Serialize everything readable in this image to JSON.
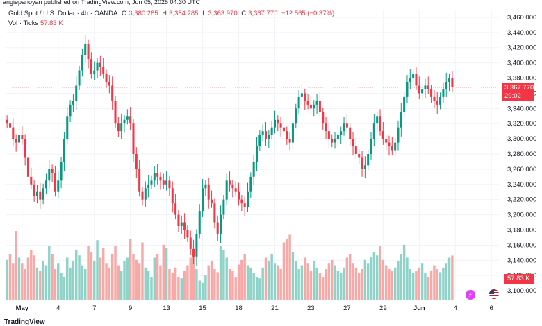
{
  "caption": "angiepanoyan published on TradingView.com, Jun 05, 2025 04:30 UTC",
  "legend": {
    "symbol": "Gold Spot / U.S. Dollar · 4h · OANDA",
    "open_label": "O",
    "open": "3,380.285",
    "high_label": "H",
    "high": "3,384.285",
    "low_label": "L",
    "low": "3,363.970",
    "close_label": "C",
    "close": "3,367.770",
    "change": "−12.565 (−0.37%)",
    "vol_label": "Vol · Ticks",
    "vol_value": "57.83 K"
  },
  "price_badge": {
    "price": "3,367.770",
    "countdown": "29:02"
  },
  "vol_badge": "57.83 K",
  "footer": {
    "brand": "TradingView"
  },
  "icons": {
    "logo": "tradingview-logo-icon",
    "flag": "us-flag-icon",
    "replay": "tv-replay-icon"
  },
  "colors": {
    "up": "#089981",
    "down": "#f23645",
    "up_vol": "#8fd3c8",
    "down_vol": "#f7a9a7"
  },
  "chart_data": {
    "type": "candlestick",
    "ylim": [
      3090,
      3470
    ],
    "y_ticks": [
      "3,100.000",
      "3,120.000",
      "3,140.000",
      "3,160.000",
      "3,180.000",
      "3,200.000",
      "3,220.000",
      "3,240.000",
      "3,260.000",
      "3,280.000",
      "3,300.000",
      "3,320.000",
      "3,340.000",
      "3,360.000",
      "3,380.000",
      "3,400.000",
      "3,420.000",
      "3,440.000",
      "3,460.000"
    ],
    "x_ticks": [
      {
        "label": "May",
        "index": 5
      },
      {
        "label": "4",
        "index": 17
      },
      {
        "label": "7",
        "index": 29
      },
      {
        "label": "9",
        "index": 41
      },
      {
        "label": "13",
        "index": 53
      },
      {
        "label": "15",
        "index": 65
      },
      {
        "label": "18",
        "index": 77
      },
      {
        "label": "21",
        "index": 89
      },
      {
        "label": "23",
        "index": 101
      },
      {
        "label": "27",
        "index": 113
      },
      {
        "label": "29",
        "index": 125
      },
      {
        "label": "Jun",
        "index": 137
      },
      {
        "label": "4",
        "index": 149
      },
      {
        "label": "6",
        "index": 161
      }
    ],
    "current_price": 3367.77,
    "close_series": [
      3320,
      3315,
      3300,
      3295,
      3305,
      3300,
      3275,
      3250,
      3240,
      3225,
      3230,
      3220,
      3235,
      3245,
      3260,
      3255,
      3230,
      3245,
      3270,
      3300,
      3330,
      3345,
      3350,
      3370,
      3390,
      3410,
      3425,
      3405,
      3385,
      3390,
      3400,
      3395,
      3385,
      3375,
      3370,
      3350,
      3320,
      3310,
      3320,
      3325,
      3330,
      3320,
      3280,
      3260,
      3230,
      3220,
      3235,
      3240,
      3245,
      3255,
      3250,
      3245,
      3240,
      3245,
      3235,
      3215,
      3200,
      3185,
      3190,
      3180,
      3170,
      3155,
      3145,
      3175,
      3205,
      3235,
      3240,
      3220,
      3215,
      3190,
      3175,
      3200,
      3220,
      3245,
      3240,
      3235,
      3230,
      3220,
      3215,
      3210,
      3230,
      3250,
      3270,
      3290,
      3305,
      3310,
      3300,
      3305,
      3315,
      3325,
      3320,
      3315,
      3310,
      3300,
      3295,
      3320,
      3340,
      3355,
      3360,
      3350,
      3345,
      3340,
      3345,
      3350,
      3335,
      3320,
      3310,
      3300,
      3295,
      3300,
      3305,
      3310,
      3320,
      3315,
      3300,
      3290,
      3280,
      3275,
      3260,
      3265,
      3280,
      3300,
      3320,
      3330,
      3310,
      3300,
      3295,
      3290,
      3285,
      3295,
      3315,
      3335,
      3355,
      3375,
      3380,
      3385,
      3370,
      3360,
      3365,
      3370,
      3365,
      3355,
      3350,
      3345,
      3355,
      3365,
      3375,
      3380,
      3367.77
    ],
    "volume_series": [
      52,
      60,
      48,
      90,
      55,
      48,
      40,
      55,
      65,
      58,
      42,
      38,
      50,
      45,
      70,
      60,
      40,
      48,
      35,
      30,
      55,
      42,
      50,
      65,
      58,
      45,
      40,
      70,
      62,
      50,
      78,
      55,
      68,
      48,
      42,
      60,
      70,
      45,
      38,
      50,
      55,
      80,
      60,
      52,
      48,
      75,
      42,
      38,
      30,
      55,
      60,
      45,
      72,
      68,
      40,
      35,
      42,
      30,
      28,
      38,
      45,
      55,
      60,
      40,
      25,
      22,
      32,
      45,
      50,
      40,
      36,
      70,
      65,
      55,
      40,
      38,
      30,
      46,
      52,
      60,
      45,
      42,
      35,
      30,
      28,
      42,
      55,
      50,
      60,
      48,
      45,
      40,
      75,
      80,
      85,
      62,
      50,
      40,
      45,
      55,
      48,
      38,
      50,
      42,
      35,
      30,
      40,
      48,
      52,
      45,
      38,
      35,
      42,
      55,
      60,
      48,
      42,
      35,
      40,
      52,
      48,
      56,
      62,
      58,
      70,
      52,
      45,
      40,
      38,
      42,
      50,
      60,
      72,
      55,
      40,
      35,
      38,
      42,
      48,
      35,
      30,
      38,
      45,
      40,
      36,
      42,
      48,
      55,
      57.83
    ]
  }
}
